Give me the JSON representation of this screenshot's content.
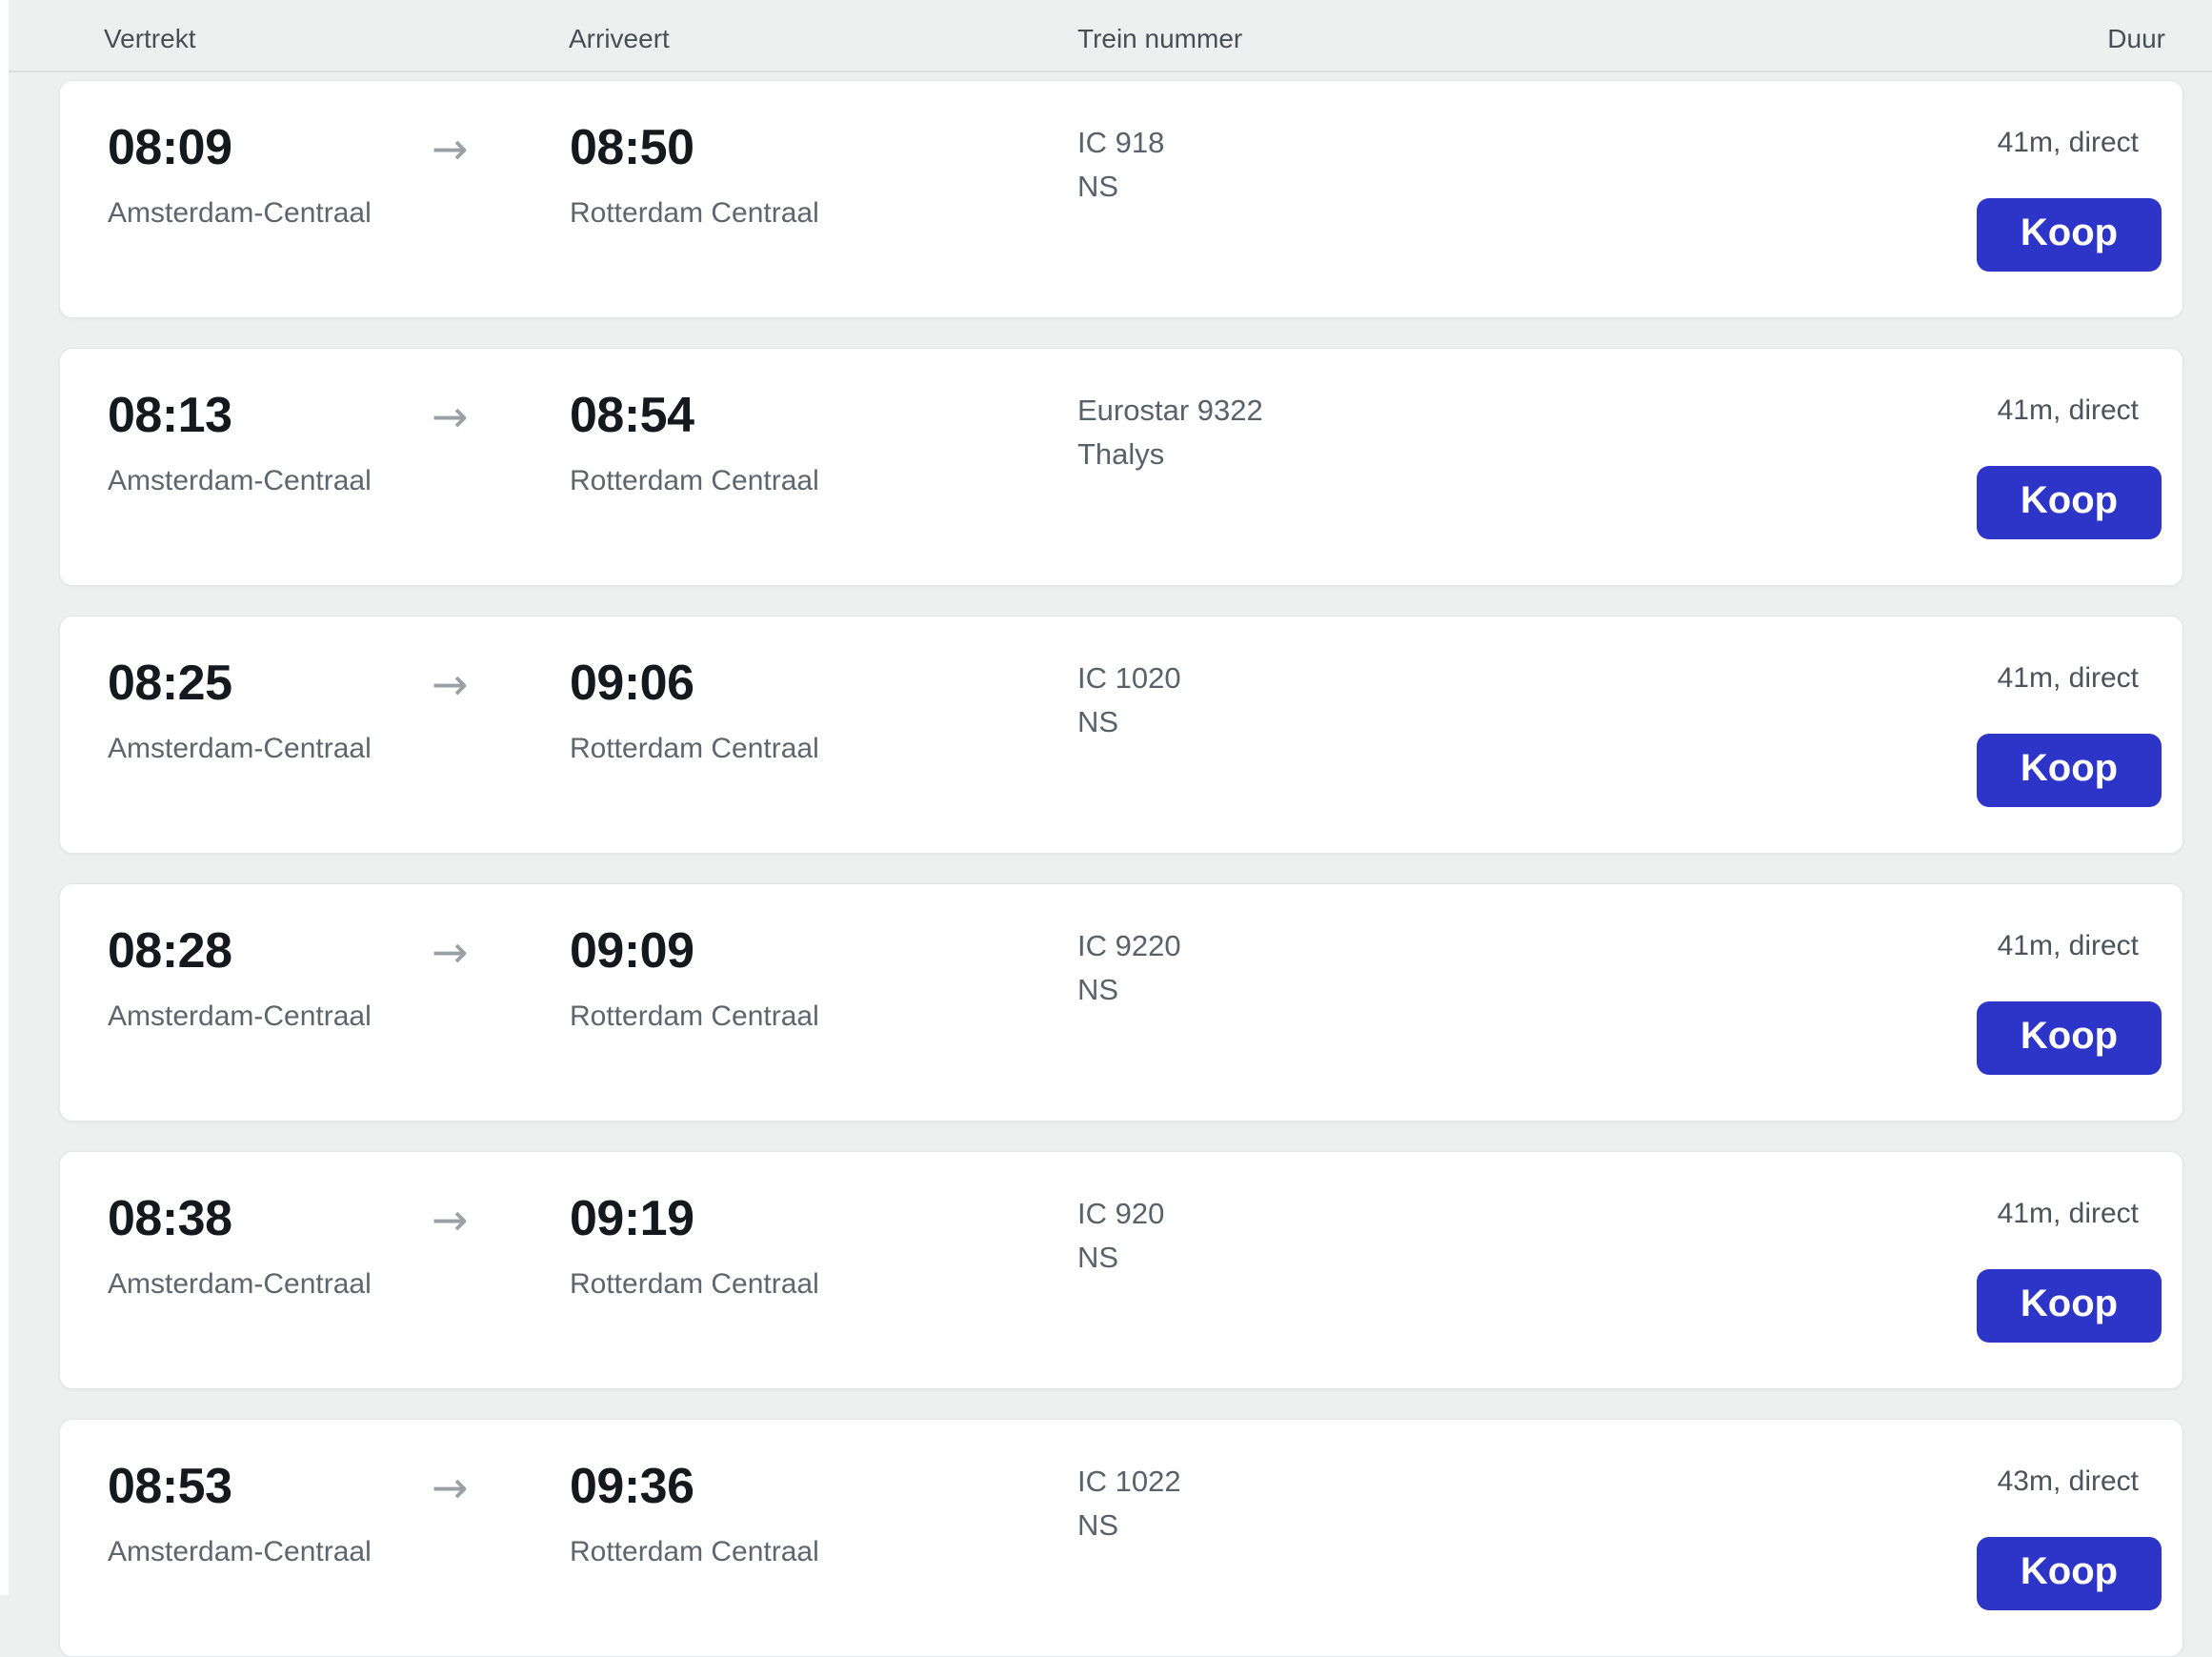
{
  "header": {
    "columns": [
      "Vertrekt",
      "Arriveert",
      "Trein nummer",
      "Duur"
    ]
  },
  "ui": {
    "buy_button_label": "Koop",
    "arrow_icon": "→"
  },
  "colors": {
    "accent_button": "#2d35c8",
    "page_background": "#eef0f0",
    "card_background": "#ffffff",
    "time_text": "#15191e",
    "secondary_text": "#5e656c"
  },
  "rows": [
    {
      "dep_time": "08:09",
      "dep_station": "Amsterdam-Centraal",
      "arr_time": "08:50",
      "arr_station": "Rotterdam Centraal",
      "train_number": "IC 918",
      "operator": "NS",
      "duration": "41m, direct"
    },
    {
      "dep_time": "08:13",
      "dep_station": "Amsterdam-Centraal",
      "arr_time": "08:54",
      "arr_station": "Rotterdam Centraal",
      "train_number": "Eurostar 9322",
      "operator": "Thalys",
      "duration": "41m, direct"
    },
    {
      "dep_time": "08:25",
      "dep_station": "Amsterdam-Centraal",
      "arr_time": "09:06",
      "arr_station": "Rotterdam Centraal",
      "train_number": "IC 1020",
      "operator": "NS",
      "duration": "41m, direct"
    },
    {
      "dep_time": "08:28",
      "dep_station": "Amsterdam-Centraal",
      "arr_time": "09:09",
      "arr_station": "Rotterdam Centraal",
      "train_number": "IC 9220",
      "operator": "NS",
      "duration": "41m, direct"
    },
    {
      "dep_time": "08:38",
      "dep_station": "Amsterdam-Centraal",
      "arr_time": "09:19",
      "arr_station": "Rotterdam Centraal",
      "train_number": "IC 920",
      "operator": "NS",
      "duration": "41m, direct"
    },
    {
      "dep_time": "08:53",
      "dep_station": "Amsterdam-Centraal",
      "arr_time": "09:36",
      "arr_station": "Rotterdam Centraal",
      "train_number": "IC 1022",
      "operator": "NS",
      "duration": "43m, direct"
    }
  ]
}
